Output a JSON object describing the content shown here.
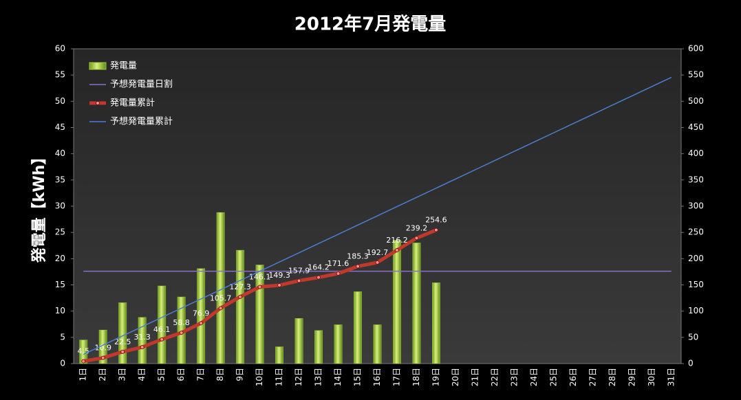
{
  "chart_data": {
    "type": "bar",
    "title": "2012年7月発電量",
    "y_label": "発電量【kWh】",
    "categories": [
      "1日",
      "2日",
      "3日",
      "4日",
      "5日",
      "6日",
      "7日",
      "8日",
      "9日",
      "10日",
      "11日",
      "12日",
      "13日",
      "14日",
      "15日",
      "16日",
      "17日",
      "18日",
      "19日",
      "20日",
      "21日",
      "22日",
      "23日",
      "24日",
      "25日",
      "26日",
      "27日",
      "28日",
      "29日",
      "30日",
      "31日"
    ],
    "ylim": [
      0,
      60
    ],
    "yticks": [
      0,
      5,
      10,
      15,
      20,
      25,
      30,
      35,
      40,
      45,
      50,
      55,
      60
    ],
    "y2lim": [
      0,
      600
    ],
    "y2ticks": [
      0,
      50,
      100,
      150,
      200,
      250,
      300,
      350,
      400,
      450,
      500,
      550,
      600
    ],
    "grid": false,
    "legend": "upper left",
    "series": [
      {
        "name": "発電量",
        "type": "bar",
        "color": "#9acd32",
        "values": [
          4.5,
          6.4,
          11.6,
          8.8,
          14.8,
          12.7,
          18.1,
          28.8,
          21.6,
          18.8,
          3.2,
          8.6,
          6.3,
          7.4,
          13.7,
          7.4,
          23.5,
          23.0,
          15.4,
          null,
          null,
          null,
          null,
          null,
          null,
          null,
          null,
          null,
          null,
          null,
          null
        ]
      },
      {
        "name": "予想発電量日割",
        "type": "line",
        "color": "#8e6fc8",
        "values": [
          17.6,
          17.6,
          17.6,
          17.6,
          17.6,
          17.6,
          17.6,
          17.6,
          17.6,
          17.6,
          17.6,
          17.6,
          17.6,
          17.6,
          17.6,
          17.6,
          17.6,
          17.6,
          17.6,
          17.6,
          17.6,
          17.6,
          17.6,
          17.6,
          17.6,
          17.6,
          17.6,
          17.6,
          17.6,
          17.6,
          17.6
        ]
      },
      {
        "name": "発電量累計",
        "type": "line",
        "axis": "y2",
        "markers": true,
        "labels": true,
        "color": "#c0392b",
        "values": [
          4.5,
          10.9,
          22.5,
          31.3,
          46.1,
          58.8,
          76.9,
          105.7,
          127.3,
          146.1,
          149.3,
          157.9,
          164.2,
          171.6,
          185.3,
          192.7,
          216.2,
          239.2,
          254.6,
          null,
          null,
          null,
          null,
          null,
          null,
          null,
          null,
          null,
          null,
          null,
          null
        ]
      },
      {
        "name": "予想発電量累計",
        "type": "line",
        "axis": "y2",
        "color": "#4a7fd0",
        "values": [
          17.6,
          35.2,
          52.8,
          70.4,
          88,
          105.6,
          123.2,
          140.8,
          158.4,
          176,
          193.6,
          211.2,
          228.8,
          246.4,
          264,
          281.6,
          299.2,
          316.8,
          334.4,
          352,
          369.6,
          387.2,
          404.8,
          422.4,
          440,
          457.6,
          475.2,
          492.8,
          510.4,
          528,
          545.6
        ]
      }
    ]
  }
}
